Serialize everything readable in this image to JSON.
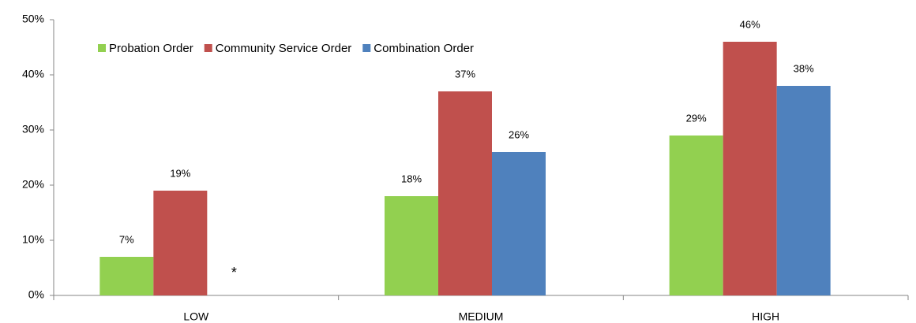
{
  "chart_data": {
    "type": "bar",
    "categories": [
      "LOW",
      "MEDIUM",
      "HIGH"
    ],
    "series": [
      {
        "name": "Probation Order",
        "color": "#92d050",
        "values": [
          7,
          18,
          29
        ],
        "value_labels": [
          "7%",
          "18%",
          "29%"
        ]
      },
      {
        "name": "Community Service Order",
        "color": "#c0504d",
        "values": [
          19,
          37,
          46
        ],
        "value_labels": [
          "19%",
          "37%",
          "46%"
        ]
      },
      {
        "name": "Combination Order",
        "color": "#4f81bd",
        "values": [
          null,
          26,
          38
        ],
        "value_labels": [
          "*",
          "26%",
          "38%"
        ]
      }
    ],
    "ylim": [
      0,
      50
    ],
    "yticks": [
      {
        "value": 0,
        "label": "0%"
      },
      {
        "value": 10,
        "label": "10%"
      },
      {
        "value": 20,
        "label": "20%"
      },
      {
        "value": 30,
        "label": "30%"
      },
      {
        "value": 40,
        "label": "40%"
      },
      {
        "value": 50,
        "label": "50%"
      }
    ],
    "legend": "top"
  }
}
